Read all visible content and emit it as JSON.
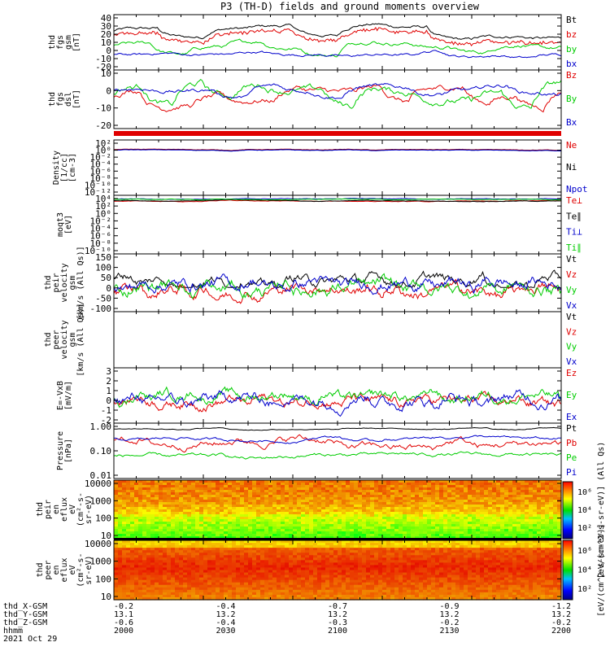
{
  "title": "P3 (TH-D) fields and ground moments overview",
  "date_label": "2021 Oct 29",
  "colors": {
    "black": "#000000",
    "red": "#e00000",
    "green": "#00cc00",
    "blue": "#0000cc"
  },
  "chart_data": [
    {
      "type": "line",
      "ylabel": [
        "thd",
        "fgs",
        "gsm",
        "[nT]"
      ],
      "yticks": [
        "40",
        "30",
        "20",
        "10",
        "0",
        "-10",
        "-20"
      ],
      "ylim": [
        -20,
        40
      ],
      "series": [
        {
          "name": "Bt",
          "color": "#000000"
        },
        {
          "name": "bz",
          "color": "#e00000"
        },
        {
          "name": "by",
          "color": "#00cc00"
        },
        {
          "name": "bx",
          "color": "#0000cc"
        }
      ]
    },
    {
      "type": "line",
      "ylabel": [
        "thd",
        "fgs",
        "dsl",
        "[nT]"
      ],
      "yticks": [
        "10",
        "0",
        "-10",
        "-20"
      ],
      "ylim": [
        -25,
        18
      ],
      "series": [
        {
          "name": "Bz",
          "color": "#e00000"
        },
        {
          "name": "By",
          "color": "#00cc00"
        },
        {
          "name": "Bx",
          "color": "#0000cc"
        }
      ]
    },
    {
      "type": "line",
      "ylabel": [
        "Density",
        "[1/cc]",
        "[cm-3]"
      ],
      "yticks": [
        "10²",
        "10⁰",
        "10⁻²",
        "10⁻⁴",
        "10⁻⁶",
        "10⁻⁸",
        "10⁻¹⁰",
        "10⁻¹²"
      ],
      "scale": "log",
      "series": [
        {
          "name": "Ne",
          "color": "#e00000"
        },
        {
          "name": "Ni",
          "color": "#000000"
        },
        {
          "name": "Npot",
          "color": "#0000cc"
        }
      ]
    },
    {
      "type": "line",
      "ylabel": [
        "moqt3",
        "[eV]"
      ],
      "yticks": [
        "10⁴",
        "10²",
        "10⁰",
        "10⁻²",
        "10⁻⁴",
        "10⁻⁶",
        "10⁻⁸",
        "10⁻¹⁰"
      ],
      "scale": "log",
      "series": [
        {
          "name": "Te⊥",
          "color": "#e00000"
        },
        {
          "name": "Te∥",
          "color": "#000000"
        },
        {
          "name": "Ti⊥",
          "color": "#0000cc"
        },
        {
          "name": "Ti∥",
          "color": "#00cc00"
        }
      ]
    },
    {
      "type": "line",
      "ylabel": [
        "thd",
        "peir",
        "velocity",
        "gsm",
        "[km/s (All Qs)]"
      ],
      "yticks": [
        "150",
        "100",
        "50",
        "0",
        "-50",
        "-100"
      ],
      "ylim": [
        -100,
        150
      ],
      "series": [
        {
          "name": "Vt",
          "color": "#000000"
        },
        {
          "name": "Vz",
          "color": "#e00000"
        },
        {
          "name": "Vy",
          "color": "#00cc00"
        },
        {
          "name": "Vx",
          "color": "#0000cc"
        }
      ]
    },
    {
      "type": "line",
      "ylabel": [
        "thd",
        "peer",
        "velocity",
        "gsm",
        "[km/s (All Qs)]"
      ],
      "yticks": [],
      "series": [
        {
          "name": "Vt",
          "color": "#000000"
        },
        {
          "name": "Vz",
          "color": "#e00000"
        },
        {
          "name": "Vy",
          "color": "#00cc00"
        },
        {
          "name": "Vx",
          "color": "#0000cc"
        }
      ]
    },
    {
      "type": "line",
      "ylabel": [
        "E=-VxB",
        "[mV/m]"
      ],
      "yticks": [
        "3",
        "2",
        "1",
        "0",
        "-1",
        "-2"
      ],
      "ylim": [
        -2,
        3
      ],
      "series": [
        {
          "name": "Ez",
          "color": "#e00000"
        },
        {
          "name": "Ey",
          "color": "#00cc00"
        },
        {
          "name": "Ex",
          "color": "#0000cc"
        }
      ]
    },
    {
      "type": "line",
      "ylabel": [
        "Pressure",
        "[nPa]"
      ],
      "yticks": [
        "1.00",
        "0.10",
        "0.01"
      ],
      "scale": "log",
      "series": [
        {
          "name": "Pt",
          "color": "#000000"
        },
        {
          "name": "Pb",
          "color": "#e00000"
        },
        {
          "name": "Pe",
          "color": "#00cc00"
        },
        {
          "name": "Pi",
          "color": "#0000cc"
        }
      ]
    },
    {
      "type": "heatmap",
      "ylabel": [
        "thd",
        "peir",
        "en",
        "eflux",
        "eV",
        "(cm²-s-",
        "sr-eV)"
      ],
      "yticks": [
        "10000",
        "1000",
        "100",
        "10"
      ],
      "scale": "log"
    },
    {
      "type": "heatmap",
      "ylabel": [
        "thd",
        "peer",
        "en",
        "eflux",
        "eV",
        "(cm²-s-",
        "sr-eV)"
      ],
      "yticks": [
        "10000",
        "1000",
        "100",
        "10"
      ],
      "scale": "log"
    }
  ],
  "colorbars": [
    {
      "ticks": [
        "10⁶",
        "10⁴",
        "10²"
      ],
      "label": "[eV/(cm^2-s-sr-eV)] (All Qs)"
    },
    {
      "ticks": [
        "10⁶",
        "10⁴",
        "10²"
      ],
      "label": "[eV/(cm^2-s-sr-eV)]"
    }
  ],
  "xaxis": {
    "row_labels": [
      "thd_X-GSM",
      "thd_Y-GSM",
      "thd_Z-GSM",
      "hhmm"
    ],
    "columns": [
      [
        "-0.2",
        "13.1",
        "-0.6",
        "2000"
      ],
      [
        "-0.4",
        "13.2",
        "-0.4",
        "2030"
      ],
      [
        "-0.7",
        "13.2",
        "-0.3",
        "2100"
      ],
      [
        "-0.9",
        "13.2",
        "-0.2",
        "2130"
      ],
      [
        "-1.2",
        "13.2",
        "-0.2",
        "2200"
      ]
    ]
  }
}
